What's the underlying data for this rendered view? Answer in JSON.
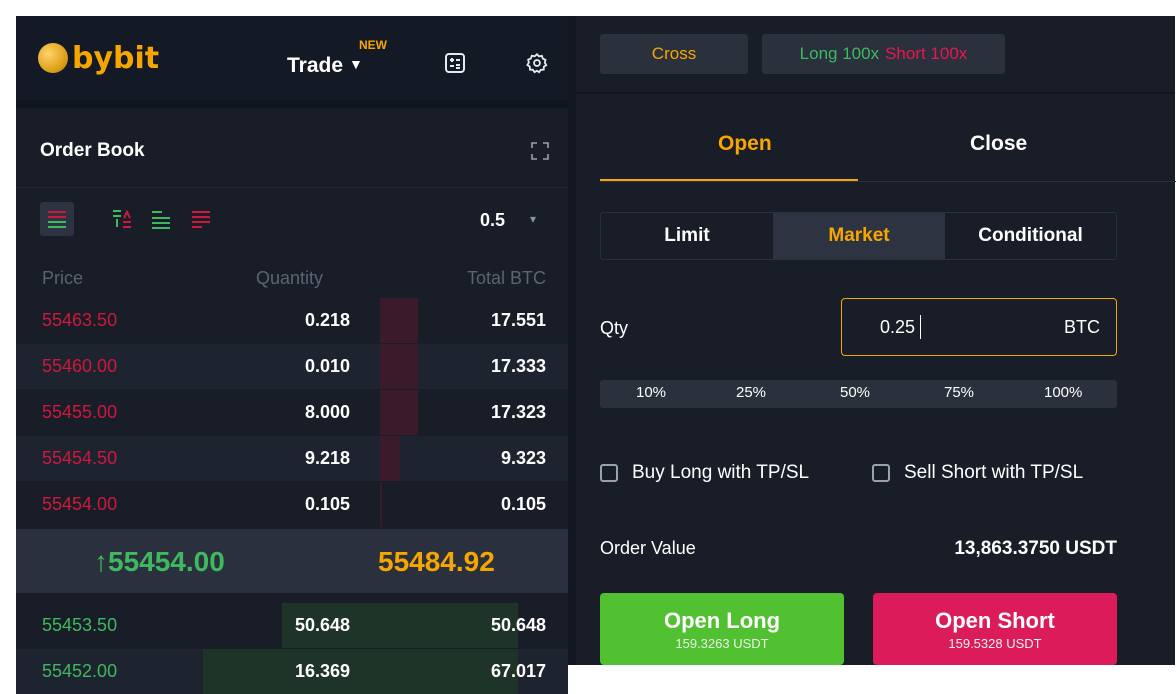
{
  "header": {
    "logo_text": "bybit",
    "trade_label": "Trade",
    "trade_caret": "▼",
    "new_badge": "NEW",
    "calculator_icon": "calculator-icon",
    "settings_icon": "gear-icon"
  },
  "orderbook": {
    "title": "Order Book",
    "precision": "0.5",
    "precision_caret": "▾",
    "view_icons": [
      "orderbook-both-icon",
      "orderbook-sort-icon",
      "orderbook-bids-icon",
      "orderbook-asks-icon"
    ],
    "columns": {
      "price": "Price",
      "quantity": "Quantity",
      "total": "Total BTC"
    },
    "asks": [
      {
        "price": "55463.50",
        "qty": "0.218",
        "total": "17.551",
        "depth": 0.21
      },
      {
        "price": "55460.00",
        "qty": "0.010",
        "total": "17.333",
        "depth": 0.21
      },
      {
        "price": "55455.00",
        "qty": "8.000",
        "total": "17.323",
        "depth": 0.21
      },
      {
        "price": "55454.50",
        "qty": "9.218",
        "total": "9.323",
        "depth": 0.11
      },
      {
        "price": "55454.00",
        "qty": "0.105",
        "total": "0.105",
        "depth": 0.01
      }
    ],
    "last_price": "↑55454.00",
    "mark_price": "55484.92",
    "bids": [
      {
        "price": "55453.50",
        "qty": "50.648",
        "total": "50.648",
        "depth": 0.62
      },
      {
        "price": "55452.00",
        "qty": "16.369",
        "total": "67.017",
        "depth": 0.83
      }
    ],
    "colors": {
      "ask": "#d0173d",
      "bid": "#3fb95e",
      "mark": "#f7a600"
    }
  },
  "order_form": {
    "margin_mode": "Cross",
    "leverage_long": "Long 100x",
    "leverage_short": "Short 100x",
    "tabs": {
      "open": "Open",
      "close": "Close"
    },
    "types": {
      "limit": "Limit",
      "market": "Market",
      "conditional": "Conditional"
    },
    "qty_label": "Qty",
    "qty_value": "0.25",
    "qty_unit": "BTC",
    "percentages": [
      "10%",
      "25%",
      "50%",
      "75%",
      "100%"
    ],
    "tpsl_long": "Buy Long with TP/SL",
    "tpsl_short": "Sell Short with TP/SL",
    "order_value_label": "Order Value",
    "order_value": "13,863.3750 USDT",
    "open_long": {
      "title": "Open Long",
      "cost": "159.3263 USDT"
    },
    "open_short": {
      "title": "Open Short",
      "cost": "159.5328 USDT"
    },
    "colors": {
      "accent": "#f7a600",
      "long": "#51c131",
      "short": "#dc1b5a"
    }
  }
}
